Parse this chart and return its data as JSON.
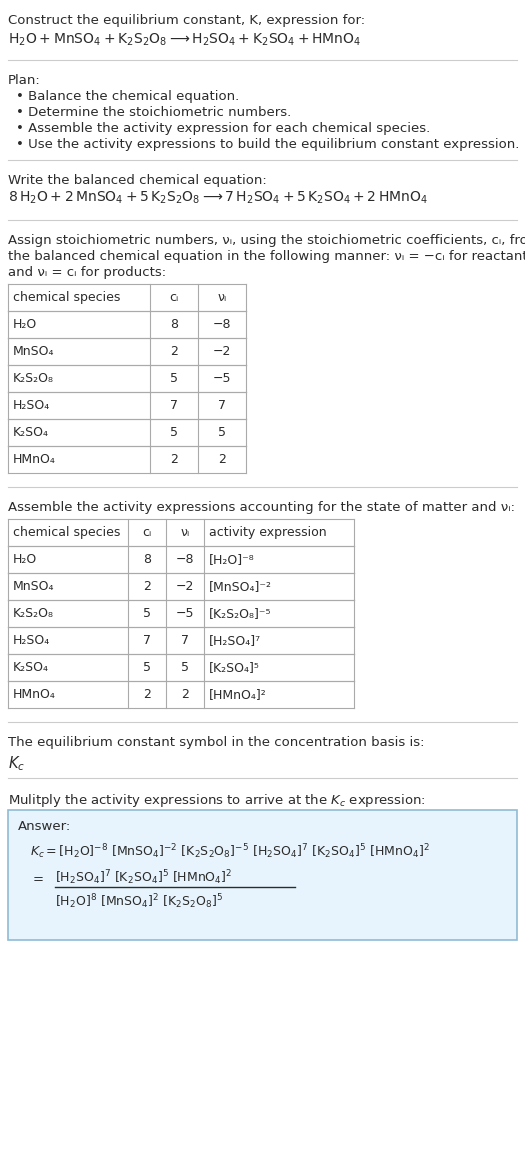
{
  "title_line1": "Construct the equilibrium constant, K, expression for:",
  "plan_header": "Plan:",
  "plan_items": [
    "• Balance the chemical equation.",
    "• Determine the stoichiometric numbers.",
    "• Assemble the activity expression for each chemical species.",
    "• Use the activity expressions to build the equilibrium constant expression."
  ],
  "balanced_header": "Write the balanced chemical equation:",
  "stoich_text1": "Assign stoichiometric numbers, νᵢ, using the stoichiometric coefficients, cᵢ, from",
  "stoich_text2": "the balanced chemical equation in the following manner: νᵢ = −cᵢ for reactants",
  "stoich_text3": "and νᵢ = cᵢ for products:",
  "table1_col_headers": [
    "chemical species",
    "cᵢ",
    "νᵢ"
  ],
  "table1_rows": [
    [
      "H₂O",
      "8",
      "−8"
    ],
    [
      "MnSO₄",
      "2",
      "−2"
    ],
    [
      "K₂S₂O₈",
      "5",
      "−5"
    ],
    [
      "H₂SO₄",
      "7",
      "7"
    ],
    [
      "K₂SO₄",
      "5",
      "5"
    ],
    [
      "HMnO₄",
      "2",
      "2"
    ]
  ],
  "activity_header": "Assemble the activity expressions accounting for the state of matter and νᵢ:",
  "table2_col_headers": [
    "chemical species",
    "cᵢ",
    "νᵢ",
    "activity expression"
  ],
  "table2_rows": [
    [
      "H₂O",
      "8",
      "−8",
      "[H₂O]⁻⁸"
    ],
    [
      "MnSO₄",
      "2",
      "−2",
      "[MnSO₄]⁻²"
    ],
    [
      "K₂S₂O₈",
      "5",
      "−5",
      "[K₂S₂O₈]⁻⁵"
    ],
    [
      "H₂SO₄",
      "7",
      "7",
      "[H₂SO₄]⁷"
    ],
    [
      "K₂SO₄",
      "5",
      "5",
      "[K₂SO₄]⁵"
    ],
    [
      "HMnO₄",
      "2",
      "2",
      "[HMnO₄]²"
    ]
  ],
  "kc_header": "The equilibrium constant symbol in the concentration basis is:",
  "multiply_header": "Mulitply the activity expressions to arrive at the Kᴄ expression:",
  "bg_color": "#ffffff",
  "text_color": "#2b2b2b",
  "table_border_color": "#aaaaaa",
  "answer_box_fill": "#e8f4fd",
  "answer_box_border": "#90bbd4",
  "sep_color": "#cccccc",
  "fs": 9.5
}
